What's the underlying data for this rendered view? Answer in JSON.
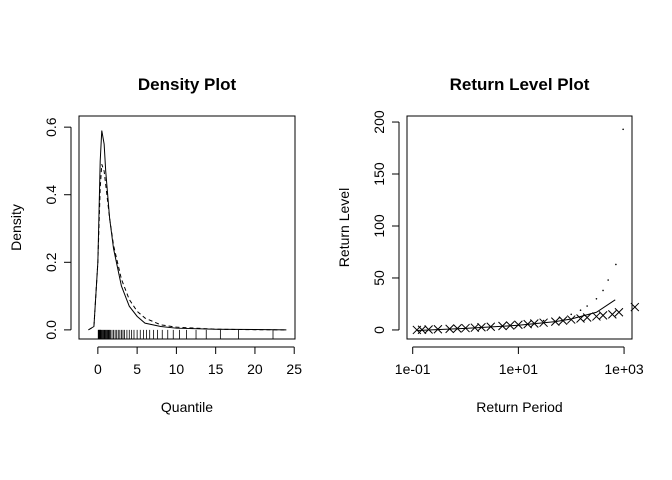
{
  "chart_data": [
    {
      "type": "line",
      "title": "Density Plot",
      "x_label": "Quantile",
      "y_label": "Density",
      "x": [
        -1.2,
        -0.5,
        0,
        0.3,
        0.5,
        0.8,
        1,
        1.5,
        2,
        3,
        4,
        5,
        6,
        8,
        10,
        15,
        20,
        24
      ],
      "series": [
        {
          "color": "#000000",
          "dash": "solid",
          "values": [
            0,
            0.01,
            0.2,
            0.5,
            0.59,
            0.55,
            0.47,
            0.33,
            0.24,
            0.13,
            0.07,
            0.04,
            0.02,
            0.01,
            0.005,
            0.002,
            0.001,
            0
          ]
        },
        {
          "color": "#000000",
          "dash": "dashed",
          "values": [
            0,
            0.01,
            0.2,
            0.42,
            0.49,
            0.47,
            0.43,
            0.33,
            0.25,
            0.15,
            0.09,
            0.055,
            0.035,
            0.015,
            0.008,
            0.002,
            0.0005,
            0
          ]
        }
      ],
      "rug": [
        0.05,
        0.1,
        0.15,
        0.2,
        0.25,
        0.3,
        0.35,
        0.4,
        0.5,
        0.6,
        0.7,
        0.8,
        0.9,
        1.0,
        1.1,
        1.2,
        1.3,
        1.4,
        1.5,
        1.6,
        1.8,
        2.0,
        2.2,
        2.4,
        2.6,
        2.8,
        3.0,
        3.2,
        3.4,
        3.7,
        4.0,
        4.3,
        4.6,
        5.0,
        5.4,
        5.8,
        6.2,
        6.6,
        7.1,
        7.6,
        8.2,
        8.9,
        9.6,
        10.4,
        11.3,
        12.5,
        13.8,
        15.6,
        17.9,
        22.3
      ],
      "xlim": [
        -2.4,
        25.1
      ],
      "ylim": [
        -0.027,
        0.633
      ],
      "xticks": [
        0,
        5,
        10,
        15,
        20,
        25
      ],
      "yticks": [
        {
          "value": 0,
          "label": "0.0"
        },
        0.2,
        0.4,
        0.6
      ]
    },
    {
      "type": "scatter",
      "title": "Return Level Plot",
      "x_label": "Return Period",
      "y_label": "Return Level",
      "xscale": "log",
      "series": [
        {
          "marker": "line",
          "color": "#000000",
          "x": [
            0.12,
            1,
            10,
            50,
            100,
            300,
            680
          ],
          "values": [
            -0.5,
            1.5,
            4.5,
            8,
            10.5,
            17,
            29
          ]
        },
        {
          "marker": "cross",
          "color": "#000000",
          "x": [
            0.12,
            0.15,
            0.2,
            0.3,
            0.5,
            0.7,
            1,
            1.5,
            2,
            3,
            5,
            7,
            10,
            15,
            20,
            30,
            50,
            70,
            100,
            150,
            200,
            300,
            400,
            600,
            800,
            1600
          ],
          "values": [
            0,
            0.2,
            0.4,
            0.7,
            1,
            1.4,
            1.8,
            2.2,
            2.6,
            3.1,
            3.8,
            4.3,
            5,
            5.6,
            6.2,
            7,
            8,
            9,
            10,
            11,
            12,
            13,
            14,
            15,
            17,
            22
          ]
        },
        {
          "marker": "dot",
          "color": "#000000",
          "x": [
            30,
            60,
            100,
            150,
            200,
            300,
            400,
            500,
            700,
            960
          ],
          "values": [
            9,
            12,
            15,
            19,
            23,
            30,
            38,
            48,
            63,
            193
          ]
        }
      ],
      "xlim": [
        0.078,
        1413
      ],
      "ylim": [
        -8.7,
        205.8
      ],
      "xticks": [
        {
          "value": 0.1,
          "label": "1e-01"
        },
        {
          "value": 10,
          "label": "1e+01"
        },
        {
          "value": 1000,
          "label": "1e+03"
        }
      ],
      "yticks": [
        0,
        50,
        100,
        150,
        200
      ]
    }
  ]
}
